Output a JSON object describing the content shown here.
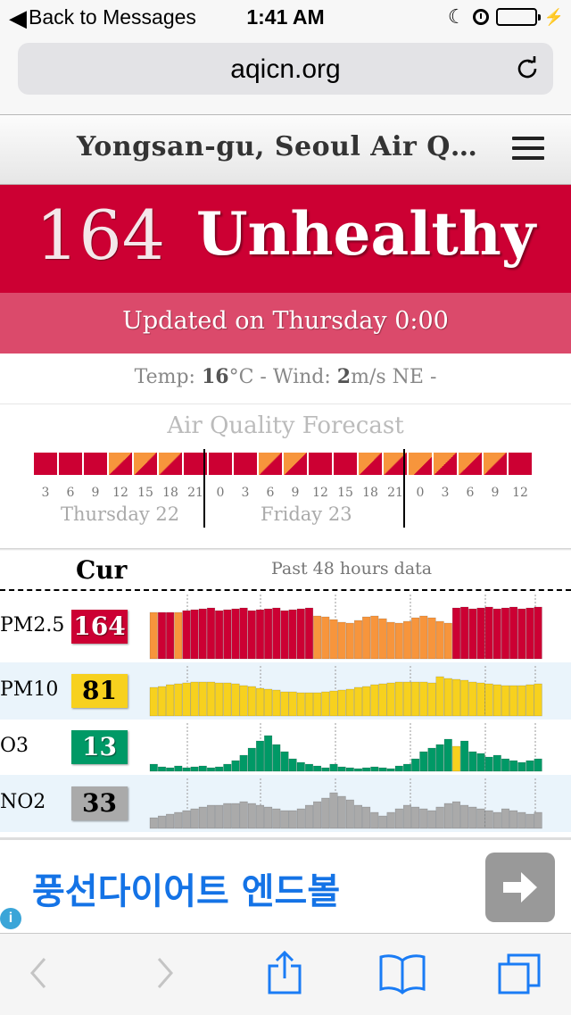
{
  "status_bar": {
    "back_label": "Back to Messages",
    "time": "1:41 AM",
    "battery_color": "#4cd964"
  },
  "browser": {
    "url": "aqicn.org",
    "icons": [
      "reload-icon",
      "back-icon",
      "forward-icon",
      "share-icon",
      "bookmarks-icon",
      "tabs-icon"
    ]
  },
  "site": {
    "title": "Yongsan-gu, Seoul Air Q…",
    "aqi_value": "164",
    "aqi_status": "Unhealthy",
    "updated": "Updated on Thursday 0:00",
    "colors": {
      "unhealthy": "#cc0033",
      "unhealthy_light": "#db4a6b",
      "usg": "#f7953c",
      "moderate": "#f7d11e",
      "good": "#009966",
      "no2": "#aaaaaa"
    }
  },
  "weather": {
    "temp_label": "Temp:",
    "temp_value": "16",
    "temp_unit": "°C -",
    "wind_label": "Wind:",
    "wind_value": "2",
    "wind_unit": "m/s NE -"
  },
  "forecast": {
    "title": "Air Quality Forecast",
    "days": [
      {
        "label": "Thursday 22",
        "ticks": [
          "3",
          "6",
          "9",
          "12",
          "15",
          "18",
          "21"
        ],
        "levels": [
          "red",
          "red",
          "red",
          "split",
          "split",
          "split",
          "red"
        ]
      },
      {
        "label": "Friday 23",
        "ticks": [
          "0",
          "3",
          "6",
          "9",
          "12",
          "15",
          "18",
          "21"
        ],
        "levels": [
          "red",
          "red",
          "split",
          "split",
          "red",
          "red",
          "split",
          "split"
        ]
      },
      {
        "label": "",
        "ticks": [
          "0",
          "3",
          "6",
          "9",
          "12"
        ],
        "levels": [
          "orange-split",
          "split",
          "split",
          "split",
          "red"
        ]
      }
    ]
  },
  "history": {
    "current_label": "Cur",
    "past_label": "Past 48 hours data",
    "rows": [
      {
        "name": "PM2.5",
        "value": "164",
        "box_color": "#cc0033",
        "text_color": "#ffffff"
      },
      {
        "name": "PM10",
        "value": "81",
        "box_color": "#f7d11e",
        "text_color": "#000000"
      },
      {
        "name": "O3",
        "value": "13",
        "box_color": "#009966",
        "text_color": "#ffffff"
      },
      {
        "name": "NO2",
        "value": "33",
        "box_color": "#aaaaaa",
        "text_color": "#000000"
      }
    ]
  },
  "ad": {
    "text": "풍선다이어트 엔드볼",
    "arrow_icon": "arrow-right-icon",
    "info_icon": "info-icon"
  }
}
